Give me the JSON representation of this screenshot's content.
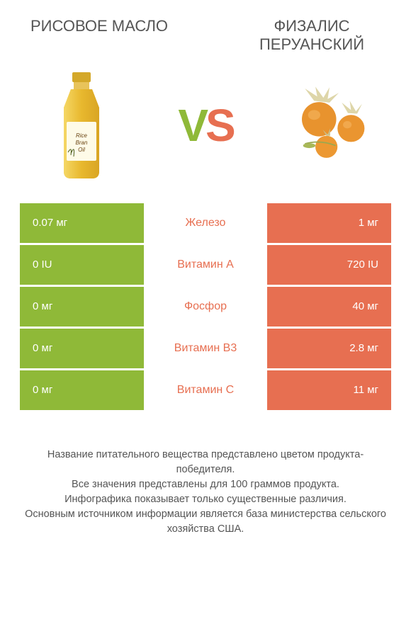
{
  "colors": {
    "left": "#8fb938",
    "right": "#e76f51",
    "vs_v": "#8fb938",
    "vs_s": "#e76f51"
  },
  "products": {
    "left_title": "РИСОВОЕ МАСЛО",
    "right_title": "ФИЗАЛИС ПЕРУАНСКИЙ"
  },
  "vs": {
    "v": "V",
    "s": "S"
  },
  "rows": [
    {
      "left": "0.07 мг",
      "label": "Железо",
      "right": "1 мг",
      "winner": "right"
    },
    {
      "left": "0 IU",
      "label": "Витамин A",
      "right": "720 IU",
      "winner": "right"
    },
    {
      "left": "0 мг",
      "label": "Фосфор",
      "right": "40 мг",
      "winner": "right"
    },
    {
      "left": "0 мг",
      "label": "Витамин B3",
      "right": "2.8 мг",
      "winner": "right"
    },
    {
      "left": "0 мг",
      "label": "Витамин C",
      "right": "11 мг",
      "winner": "right"
    }
  ],
  "footer": {
    "line1": "Название питательного вещества представлено цветом продукта-победителя.",
    "line2": "Все значения представлены для 100 граммов продукта.",
    "line3": "Инфографика показывает только существенные различия.",
    "line4": "Основным источником информации является база министерства сельского хозяйства США."
  }
}
